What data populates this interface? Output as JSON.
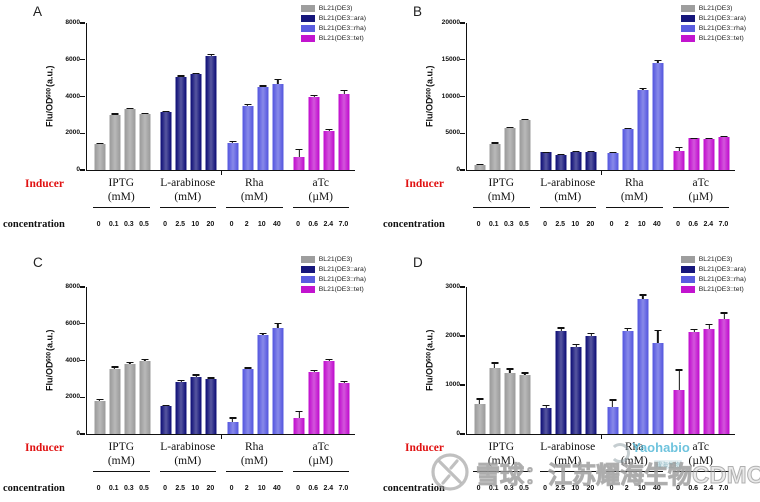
{
  "labels": {
    "inducer": "Inducer",
    "concentration": "concentration"
  },
  "ylabel": {
    "pre": "Flu/OD",
    "sub": "600",
    "post": "(a.u.)"
  },
  "legend": {
    "items": [
      {
        "label": "BL21(DE3)",
        "color": "#9e9e9e"
      },
      {
        "label": "BL21(DE3::ara)",
        "color": "#15157b"
      },
      {
        "label": "BL21(DE3::rha)",
        "color": "#5a5ce0"
      },
      {
        "label": "BL21(DE3::tet)",
        "color": "#c214cf"
      }
    ]
  },
  "watermarks": {
    "xueqiu_text": "雪球：江苏耀海生物CDMO",
    "yaohai_text": "Yaohabio",
    "yaohai_sub": "耀海生物"
  },
  "chart_data": [
    {
      "panel": "A",
      "type": "bar",
      "ylabel": "Flu/OD600(a.u.)",
      "ylim": [
        0,
        8000
      ],
      "yticks": [
        0,
        2000,
        4000,
        6000,
        8000
      ],
      "groups": [
        {
          "inducer": "IPTG",
          "unit": "(mM)",
          "strain": "BL21(DE3)",
          "color": "#9e9e9e",
          "concentrations": [
            "0",
            "0.1",
            "0.3",
            "0.5"
          ],
          "values": [
            1400,
            3000,
            3300,
            3050
          ],
          "errors": [
            90,
            90,
            90,
            60
          ]
        },
        {
          "inducer": "L-arabinose",
          "unit": "(mM)",
          "strain": "BL21(DE3::ara)",
          "color": "#15157b",
          "concentrations": [
            "0",
            "2.5",
            "10",
            "20"
          ],
          "values": [
            3150,
            5050,
            5200,
            6200
          ],
          "errors": [
            70,
            100,
            100,
            120
          ]
        },
        {
          "inducer": "Rha",
          "unit": "(mM)",
          "strain": "BL21(DE3::rha)",
          "color": "#5a5ce0",
          "concentrations": [
            "0",
            "2",
            "10",
            "40"
          ],
          "values": [
            1450,
            3500,
            4500,
            4700
          ],
          "errors": [
            140,
            90,
            110,
            280
          ]
        },
        {
          "inducer": "aTc",
          "unit": "(µM)",
          "strain": "BL21(DE3::tet)",
          "color": "#c214cf",
          "concentrations": [
            "0",
            "0.6",
            "2.4",
            "7.0"
          ],
          "values": [
            700,
            4000,
            2150,
            4150
          ],
          "errors": [
            450,
            90,
            90,
            230
          ]
        }
      ]
    },
    {
      "panel": "B",
      "type": "bar",
      "ylabel": "Flu/OD600(a.u.)",
      "ylim": [
        0,
        20000
      ],
      "yticks": [
        0,
        5000,
        10000,
        15000,
        20000
      ],
      "groups": [
        {
          "inducer": "IPTG",
          "unit": "(mM)",
          "strain": "BL21(DE3)",
          "color": "#9e9e9e",
          "concentrations": [
            "0",
            "0.1",
            "0.3",
            "0.5"
          ],
          "values": [
            700,
            3600,
            5750,
            6800
          ],
          "errors": [
            150,
            150,
            120,
            120
          ]
        },
        {
          "inducer": "L-arabinose",
          "unit": "(mM)",
          "strain": "BL21(DE3::ara)",
          "color": "#15157b",
          "concentrations": [
            "0",
            "2.5",
            "10",
            "20"
          ],
          "values": [
            2400,
            2100,
            2500,
            2450
          ],
          "errors": [
            120,
            120,
            150,
            120
          ]
        },
        {
          "inducer": "Rha",
          "unit": "(mM)",
          "strain": "BL21(DE3::rha)",
          "color": "#5a5ce0",
          "concentrations": [
            "0",
            "2",
            "10",
            "40"
          ],
          "values": [
            2300,
            5600,
            10900,
            14600
          ],
          "errors": [
            150,
            150,
            250,
            400
          ]
        },
        {
          "inducer": "aTc",
          "unit": "(µM)",
          "strain": "BL21(DE3::tet)",
          "color": "#c214cf",
          "concentrations": [
            "0",
            "0.6",
            "2.4",
            "7.0"
          ],
          "values": [
            2650,
            4300,
            4250,
            4550
          ],
          "errors": [
            500,
            120,
            150,
            120
          ]
        }
      ]
    },
    {
      "panel": "C",
      "type": "bar",
      "ylabel": "Flu/OD600(a.u.)",
      "ylim": [
        0,
        8000
      ],
      "yticks": [
        0,
        2000,
        4000,
        6000,
        8000
      ],
      "groups": [
        {
          "inducer": "IPTG",
          "unit": "(mM)",
          "strain": "BL21(DE3)",
          "color": "#9e9e9e",
          "concentrations": [
            "0",
            "0.1",
            "0.3",
            "0.5"
          ],
          "values": [
            1800,
            3550,
            3800,
            4000
          ],
          "errors": [
            100,
            130,
            130,
            100
          ]
        },
        {
          "inducer": "L-arabinose",
          "unit": "(mM)",
          "strain": "BL21(DE3::ara)",
          "color": "#15157b",
          "concentrations": [
            "0",
            "2.5",
            "10",
            "20"
          ],
          "values": [
            1500,
            2850,
            3100,
            3000
          ],
          "errors": [
            70,
            100,
            150,
            80
          ]
        },
        {
          "inducer": "Rha",
          "unit": "(mM)",
          "strain": "BL21(DE3::rha)",
          "color": "#5a5ce0",
          "concentrations": [
            "0",
            "2",
            "10",
            "40"
          ],
          "values": [
            650,
            3550,
            5400,
            5750
          ],
          "errors": [
            250,
            80,
            100,
            300
          ]
        },
        {
          "inducer": "aTc",
          "unit": "(µM)",
          "strain": "BL21(DE3::tet)",
          "color": "#c214cf",
          "concentrations": [
            "0",
            "0.6",
            "2.4",
            "7.0"
          ],
          "values": [
            850,
            3400,
            3950,
            2750
          ],
          "errors": [
            430,
            80,
            150,
            150
          ]
        }
      ]
    },
    {
      "panel": "D",
      "type": "bar",
      "ylabel": "Flu/OD600(a.u.)",
      "ylim": [
        0,
        3000
      ],
      "yticks": [
        0,
        1000,
        2000,
        3000
      ],
      "groups": [
        {
          "inducer": "IPTG",
          "unit": "(mM)",
          "strain": "BL21(DE3)",
          "color": "#9e9e9e",
          "concentrations": [
            "0",
            "0.1",
            "0.3",
            "0.5"
          ],
          "values": [
            620,
            1350,
            1250,
            1200
          ],
          "errors": [
            110,
            110,
            90,
            60
          ]
        },
        {
          "inducer": "L-arabinose",
          "unit": "(mM)",
          "strain": "BL21(DE3::ara)",
          "color": "#15157b",
          "concentrations": [
            "0",
            "2.5",
            "10",
            "20"
          ],
          "values": [
            540,
            2100,
            1780,
            2000
          ],
          "errors": [
            50,
            80,
            60,
            70
          ]
        },
        {
          "inducer": "Rha",
          "unit": "(mM)",
          "strain": "BL21(DE3::rha)",
          "color": "#5a5ce0",
          "concentrations": [
            "0",
            "2",
            "10",
            "40"
          ],
          "values": [
            560,
            2100,
            2760,
            1850
          ],
          "errors": [
            150,
            60,
            90,
            280
          ]
        },
        {
          "inducer": "aTc",
          "unit": "(µM)",
          "strain": "BL21(DE3::tet)",
          "color": "#c214cf",
          "concentrations": [
            "0",
            "0.6",
            "2.4",
            "7.0"
          ],
          "values": [
            900,
            2080,
            2150,
            2340
          ],
          "errors": [
            420,
            60,
            100,
            140
          ]
        }
      ]
    }
  ]
}
